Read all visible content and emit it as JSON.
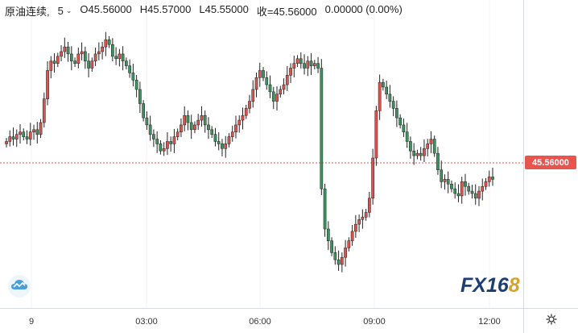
{
  "legend": {
    "symbol": "原油连续,",
    "timeframe": "5",
    "open": "O45.56000",
    "high": "H45.57000",
    "low": "L45.55000",
    "close": "收=45.56000",
    "change": "0.00000 (0.00%)"
  },
  "price_tag": "45.56000",
  "time_labels": [
    "9",
    "03:00",
    "06:00",
    "09:00",
    "12:00"
  ],
  "logo": {
    "part1": "FX16",
    "part2": "8"
  },
  "colors": {
    "up": "#d9534f",
    "down": "#3f8f5f",
    "last_line": "#e8554e",
    "tag_bg": "#e8554e"
  },
  "icons": {
    "chart_type": "cloud-chart-icon",
    "settings": "gear-icon"
  },
  "chart_data": {
    "type": "candlestick",
    "title": "原油连续, 5",
    "x_ticks": [
      "9",
      "03:00",
      "06:00",
      "09:00",
      "12:00"
    ],
    "last_price": 45.56,
    "y_estimated_range": [
      45.1,
      46.2
    ],
    "close_series": [
      45.72,
      45.74,
      45.73,
      45.75,
      45.76,
      45.74,
      45.73,
      45.76,
      45.77,
      45.75,
      45.8,
      45.9,
      46.02,
      46.06,
      46.05,
      46.08,
      46.1,
      46.12,
      46.09,
      46.06,
      46.05,
      46.09,
      46.1,
      46.06,
      46.03,
      46.06,
      46.09,
      46.1,
      46.12,
      46.15,
      46.13,
      46.08,
      46.07,
      46.09,
      46.06,
      46.04,
      46.01,
      45.98,
      45.94,
      45.88,
      45.82,
      45.79,
      45.75,
      45.73,
      45.71,
      45.68,
      45.69,
      45.72,
      45.71,
      45.74,
      45.76,
      45.79,
      45.83,
      45.8,
      45.77,
      45.79,
      45.81,
      45.83,
      45.79,
      45.77,
      45.75,
      45.72,
      45.71,
      45.69,
      45.71,
      45.74,
      45.76,
      45.79,
      45.81,
      45.83,
      45.86,
      45.89,
      45.94,
      45.99,
      46.02,
      45.99,
      45.96,
      45.93,
      45.89,
      45.92,
      45.94,
      45.96,
      46.0,
      46.03,
      46.05,
      46.07,
      46.05,
      46.03,
      46.06,
      46.04,
      46.05,
      46.03,
      45.52,
      45.35,
      45.3,
      45.25,
      45.22,
      45.2,
      45.23,
      45.27,
      45.3,
      45.34,
      45.37,
      45.39,
      45.4,
      45.42,
      45.48,
      45.65,
      45.85,
      45.97,
      45.95,
      45.92,
      45.89,
      45.86,
      45.82,
      45.79,
      45.76,
      45.72,
      45.68,
      45.66,
      45.67,
      45.66,
      45.69,
      45.71,
      45.73,
      45.67,
      45.6,
      45.55,
      45.56,
      45.54,
      45.52,
      45.5,
      45.49,
      45.55,
      45.53,
      45.51,
      45.5,
      45.48,
      45.51,
      45.53,
      45.55,
      45.57,
      45.56
    ]
  }
}
